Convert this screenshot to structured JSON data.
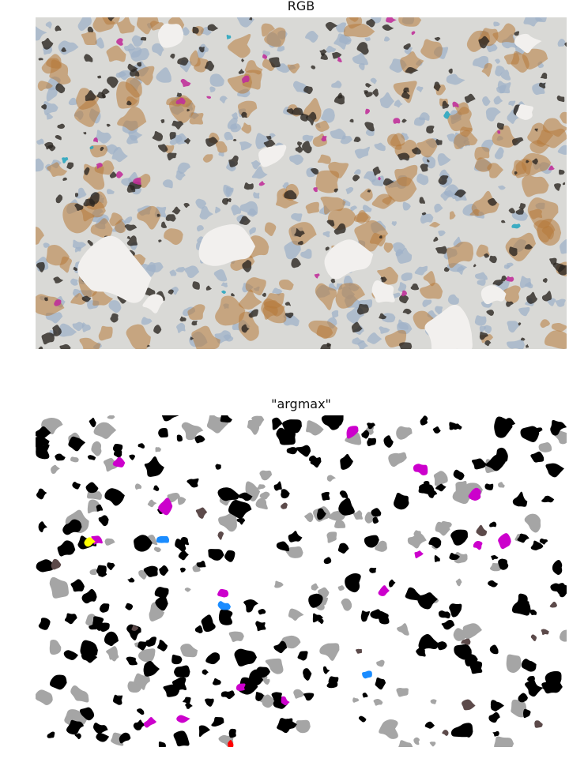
{
  "panels": [
    {
      "title": "RGB"
    },
    {
      "title": "\"argmax\""
    }
  ],
  "colors": {
    "tissue_background": "#d9d9d6",
    "nuclei_blue": "#9fb2c8",
    "dab_brown": "#b77a3a",
    "black_stain": "#2a2520",
    "magenta_stain": "#c0309a",
    "cyan_stain": "#2aa6c0",
    "lumen_white": "#f2f0ee",
    "class_black": "#000000",
    "class_gray": "#a5a5a5",
    "class_darkbrown": "#5c4a4a",
    "class_magenta": "#cc00cc",
    "class_blue": "#1a8cff",
    "class_yellow": "#ffff00",
    "class_red": "#ff0000"
  }
}
